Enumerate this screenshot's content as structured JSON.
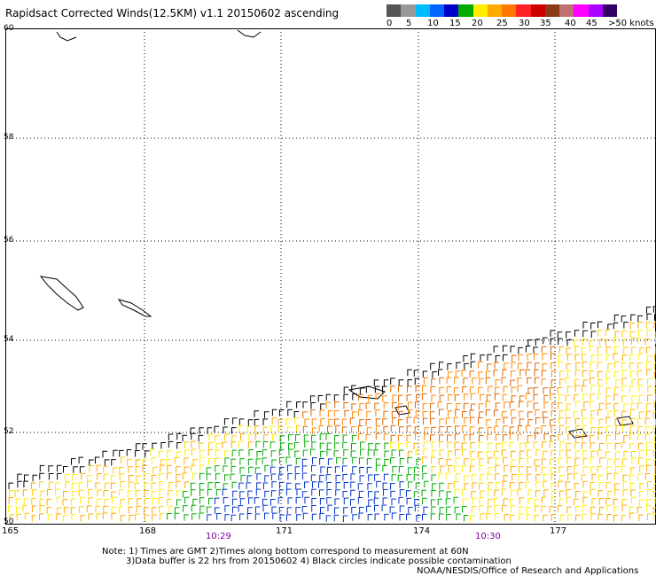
{
  "title": "Rapidsact Corrected Winds(12.5KM) v1.1 20150602 ascending",
  "legend": {
    "colors": [
      "#555555",
      "#999999",
      "#00bbff",
      "#0066ff",
      "#0000cc",
      "#00aa00",
      "#ffee00",
      "#ffaa00",
      "#ff7700",
      "#ff2222",
      "#cc0000",
      "#8b3a1a",
      "#c07070",
      "#ff00ff",
      "#aa00ff",
      "#330066"
    ],
    "labels": [
      "0",
      "5",
      "10",
      "15",
      "20",
      "25",
      "30",
      "35",
      "40",
      "45",
      ">50 knots"
    ]
  },
  "axes": {
    "x_ticks": [
      "165",
      "168",
      "171",
      "174",
      "177"
    ],
    "y_ticks": [
      "60",
      "58",
      "56",
      "54",
      "52",
      "50"
    ]
  },
  "times": [
    "10:29",
    "10:30"
  ],
  "notes": {
    "line1": "Note: 1) Times are GMT 2)Times along bottom correspond to measurement at 60N",
    "line2": "3)Data buffer is 22 hrs from 20150602 4) Black circles indicate possible contamination",
    "line3": "NOAA/NESDIS/Office of Research and Applications"
  }
}
